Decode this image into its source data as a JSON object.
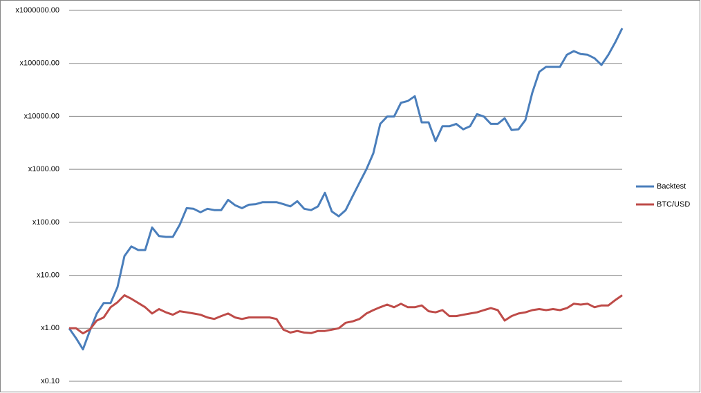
{
  "chart_data": {
    "type": "line",
    "log_scale_y": true,
    "grid": true,
    "legend": "right",
    "categories": [
      null,
      null,
      null,
      null,
      null,
      null,
      null,
      null,
      null,
      null,
      null,
      null,
      null,
      null,
      null,
      null,
      null,
      null,
      null,
      null,
      null,
      null,
      null,
      null,
      null,
      null,
      null,
      null,
      null,
      null,
      null,
      null,
      null,
      null,
      null,
      null,
      null,
      null,
      null,
      null,
      null,
      null,
      null,
      null,
      null,
      null,
      null,
      null,
      null,
      null,
      null,
      null,
      null,
      null,
      null,
      null,
      null,
      null,
      null,
      null,
      null,
      null,
      null,
      null,
      null,
      null,
      null,
      null,
      null,
      null,
      null,
      null,
      null,
      null,
      null,
      null,
      null,
      null,
      null,
      null,
      null
    ],
    "ylim": [
      0.1,
      1000000
    ],
    "yticks": [
      {
        "value": 0.1,
        "label": "x0.10"
      },
      {
        "value": 1,
        "label": "x1.00"
      },
      {
        "value": 10,
        "label": "x10.00"
      },
      {
        "value": 100,
        "label": "x100.00"
      },
      {
        "value": 1000,
        "label": "x1000.00"
      },
      {
        "value": 10000,
        "label": "x10000.00"
      },
      {
        "value": 100000,
        "label": "x100000.00"
      },
      {
        "value": 1000000,
        "label": "x1000000.00"
      }
    ],
    "series": [
      {
        "name": "Backtest",
        "color": "#4a7ebb",
        "values": [
          1,
          0.65,
          0.4,
          0.9,
          1.9,
          3,
          3,
          6,
          23,
          35,
          30,
          30,
          80,
          55,
          53,
          53,
          90,
          185,
          180,
          155,
          180,
          170,
          170,
          265,
          210,
          185,
          215,
          220,
          240,
          240,
          240,
          220,
          200,
          250,
          180,
          170,
          200,
          360,
          160,
          130,
          170,
          310,
          560,
          1000,
          2000,
          7200,
          9900,
          9900,
          18000,
          19500,
          24000,
          7700,
          7700,
          3400,
          6500,
          6500,
          7200,
          5700,
          6500,
          11000,
          9900,
          7200,
          7200,
          9200,
          5500,
          5700,
          8500,
          28000,
          69000,
          86000,
          86000,
          86000,
          145000,
          170000,
          150000,
          145000,
          125000,
          93000,
          145000,
          250000,
          460000
        ]
      },
      {
        "name": "BTC/USD",
        "color": "#be4b48",
        "values": [
          1,
          1.0,
          0.8,
          0.95,
          1.4,
          1.6,
          2.5,
          3.1,
          4.2,
          3.6,
          3,
          2.5,
          1.9,
          2.3,
          2.0,
          1.8,
          2.1,
          2.0,
          1.9,
          1.8,
          1.6,
          1.5,
          1.7,
          1.9,
          1.6,
          1.5,
          1.6,
          1.6,
          1.6,
          1.6,
          1.5,
          0.94,
          0.83,
          0.89,
          0.83,
          0.81,
          0.89,
          0.89,
          0.94,
          1.0,
          1.27,
          1.35,
          1.5,
          1.9,
          2.2,
          2.5,
          2.8,
          2.5,
          2.9,
          2.5,
          2.5,
          2.7,
          2.1,
          2.0,
          2.2,
          1.7,
          1.7,
          1.8,
          1.9,
          2.0,
          2.2,
          2.4,
          2.2,
          1.4,
          1.7,
          1.9,
          2.0,
          2.2,
          2.3,
          2.2,
          2.3,
          2.2,
          2.4,
          2.9,
          2.8,
          2.9,
          2.5,
          2.7,
          2.7,
          3.4,
          4.2
        ]
      }
    ]
  }
}
